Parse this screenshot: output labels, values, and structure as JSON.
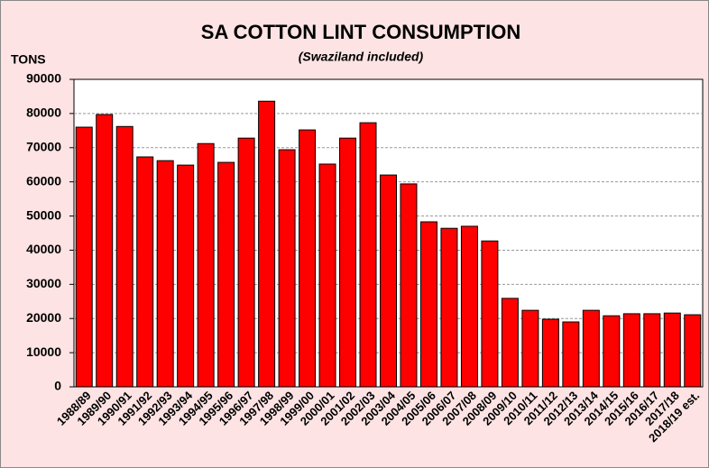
{
  "chart_data": {
    "type": "bar",
    "title": "SA COTTON LINT CONSUMPTION",
    "subtitle": "(Swaziland included)",
    "y_label": "TONS",
    "categories": [
      "1988/89",
      "1989/90",
      "1990/91",
      "1991/92",
      "1992/93",
      "1993/94",
      "1994/95",
      "1995/96",
      "1996/97",
      "1997/98",
      "1998/99",
      "1999/00",
      "2000/01",
      "2001/02",
      "2002/03",
      "2003/04",
      "2004/05",
      "2005/06",
      "2006/07",
      "2007/08",
      "2008/09",
      "2009/10",
      "2010/11",
      "2011/12",
      "2012/13",
      "2013/14",
      "2014/15",
      "2015/16",
      "2016/17",
      "2017/18",
      "2018/19 est."
    ],
    "values": [
      76000,
      79700,
      76200,
      67300,
      66200,
      64900,
      71200,
      65700,
      72800,
      83600,
      69400,
      75200,
      65200,
      72800,
      77300,
      62000,
      59400,
      48300,
      46400,
      47000,
      42700,
      25900,
      22400,
      19800,
      19000,
      22400,
      20800,
      21400,
      21400,
      21600,
      21100
    ],
    "color": "#ff0000",
    "ylim": [
      0,
      90000
    ],
    "yticks": [
      0,
      10000,
      20000,
      30000,
      40000,
      50000,
      60000,
      70000,
      80000,
      90000
    ],
    "grid": true
  }
}
